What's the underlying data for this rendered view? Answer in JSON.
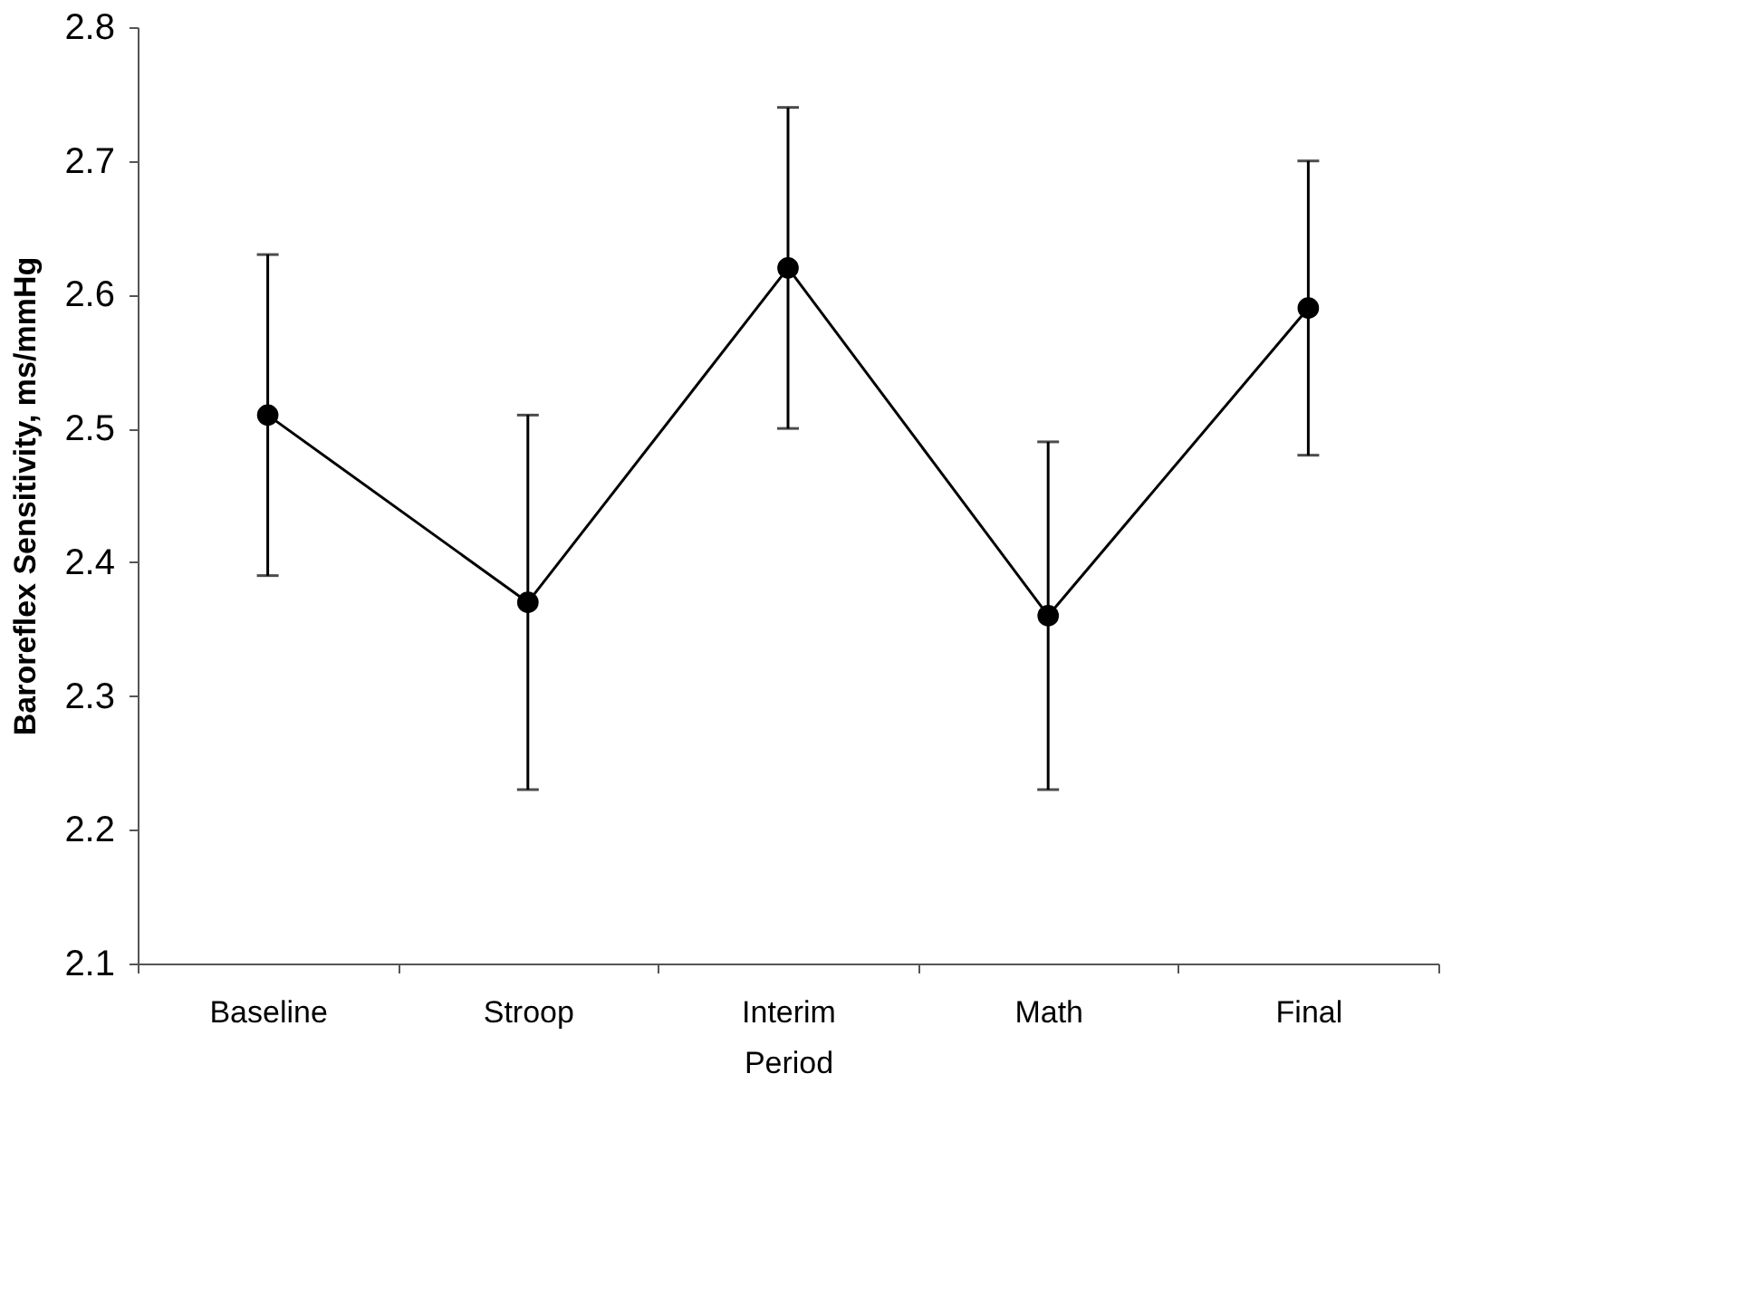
{
  "chart_data": {
    "type": "line",
    "xlabel": "Period",
    "ylabel": "Baroreflex Sensitivity, ms/mmHg",
    "categories": [
      "Baseline",
      "Stroop",
      "Interim",
      "Math",
      "Final"
    ],
    "series": [
      {
        "color": "#000000",
        "values": [
          2.51,
          2.37,
          2.62,
          2.36,
          2.59
        ],
        "errors": [
          [
            2.39,
            2.63
          ],
          [
            2.23,
            2.51
          ],
          [
            2.5,
            2.74
          ],
          [
            2.23,
            2.49
          ],
          [
            2.48,
            2.7
          ]
        ]
      }
    ],
    "ylim": [
      2.1,
      2.8
    ],
    "yticks": [
      2.1,
      2.2,
      2.3,
      2.4,
      2.5,
      2.6,
      2.7,
      2.8
    ],
    "grid": false,
    "marker": "circle",
    "line_style": "solid"
  }
}
